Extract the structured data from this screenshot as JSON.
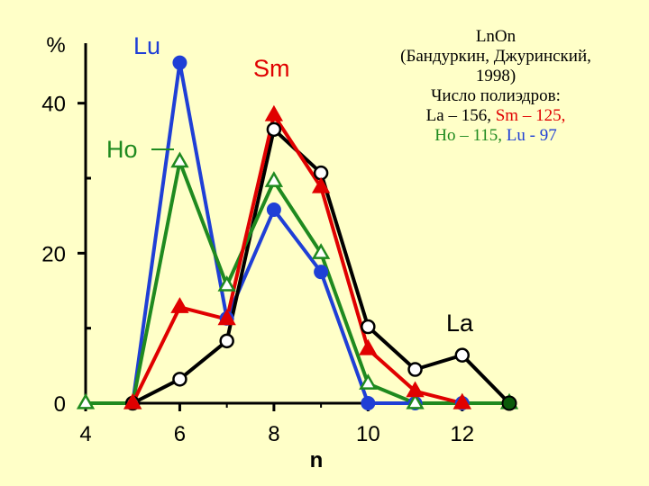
{
  "chart_data": {
    "type": "line",
    "xlabel": "n",
    "ylabel": "%",
    "xlim": [
      4,
      13
    ],
    "ylim": [
      0,
      48
    ],
    "x_ticks": [
      4,
      6,
      8,
      10,
      12
    ],
    "y_ticks": [
      0,
      20,
      40
    ],
    "grid": false,
    "series": [
      {
        "name": "La",
        "color": "#000000",
        "marker": "circle-open",
        "x": [
          5,
          6,
          7,
          8,
          9,
          10,
          11,
          12,
          13
        ],
        "values": [
          0,
          3.2,
          8.3,
          36.5,
          30.7,
          10.2,
          4.5,
          6.4,
          0
        ]
      },
      {
        "name": "Sm",
        "color": "#e00000",
        "marker": "triangle-filled",
        "x": [
          5,
          6,
          7,
          8,
          9,
          10,
          11,
          12
        ],
        "values": [
          0,
          12.8,
          11.2,
          38.4,
          28.8,
          7.2,
          1.6,
          0
        ]
      },
      {
        "name": "Ho",
        "color": "#1f8a1f",
        "marker": "triangle-open",
        "x": [
          4,
          5,
          6,
          7,
          8,
          9,
          10,
          11,
          12,
          13
        ],
        "values": [
          0,
          0,
          32.2,
          15.7,
          29.6,
          20.0,
          2.6,
          0,
          0,
          0
        ]
      },
      {
        "name": "Lu",
        "color": "#1f3fd6",
        "marker": "circle-filled",
        "x": [
          5,
          6,
          7,
          8,
          9,
          10,
          11,
          12
        ],
        "values": [
          0,
          45.4,
          11.3,
          25.8,
          17.5,
          0,
          0,
          0
        ]
      }
    ]
  },
  "caption": {
    "line1": "LnOn",
    "line2": "(Бандуркин, Джуринский,",
    "line3": "1998)",
    "line4": "Число полиэдров:",
    "la_text": "La – 156, ",
    "sm_text": "Sm – 125,",
    "ho_text": "Ho – 115, ",
    "lu_text": "Lu - 97"
  },
  "colors": {
    "background": "#ffffc8",
    "axis": "#000000"
  }
}
